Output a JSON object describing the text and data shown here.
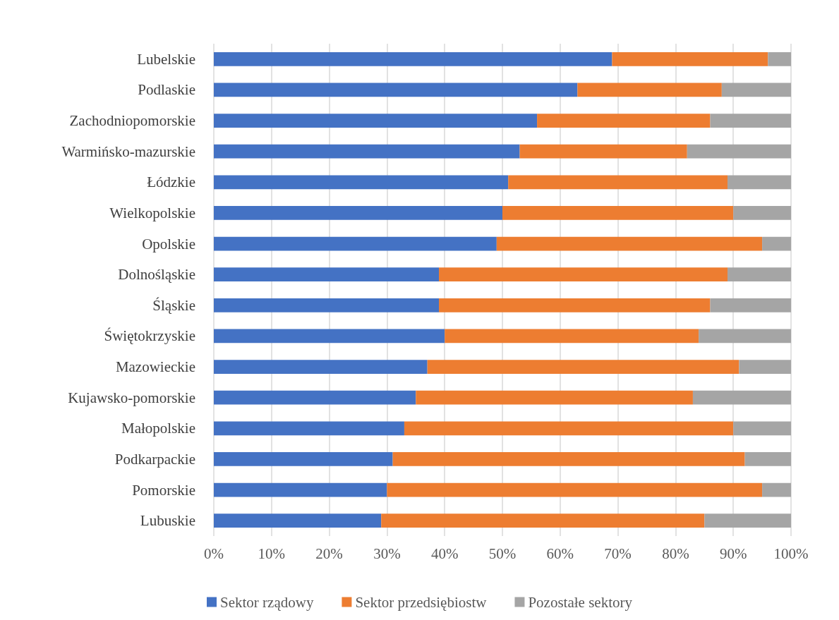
{
  "chart_data": {
    "type": "bar",
    "orientation": "horizontal",
    "stacked": true,
    "categories": [
      "Lubelskie",
      "Podlaskie",
      "Zachodniopomorskie",
      "Warmińsko-mazurskie",
      "Łódzkie",
      "Wielkopolskie",
      "Opolskie",
      "Dolnośląskie",
      "Śląskie",
      "Świętokrzyskie",
      "Mazowieckie",
      "Kujawsko-pomorskie",
      "Małopolskie",
      "Podkarpackie",
      "Pomorskie",
      "Lubuskie"
    ],
    "series": [
      {
        "name": "Sektor rządowy",
        "color": "#4472c4",
        "values": [
          69,
          63,
          56,
          53,
          51,
          50,
          49,
          39,
          39,
          40,
          37,
          35,
          33,
          31,
          30,
          29
        ]
      },
      {
        "name": "Sektor przedsiębiostw",
        "color": "#ed7d31",
        "values": [
          27,
          25,
          30,
          29,
          38,
          40,
          46,
          50,
          47,
          44,
          54,
          48,
          57,
          61,
          65,
          56
        ]
      },
      {
        "name": "Pozostałe sektory",
        "color": "#a5a5a5",
        "values": [
          4,
          12,
          14,
          18,
          11,
          10,
          5,
          11,
          14,
          16,
          9,
          17,
          10,
          8,
          5,
          15
        ]
      }
    ],
    "xlim": [
      0,
      100
    ],
    "xticks": [
      {
        "value": 0,
        "label": "0%"
      },
      {
        "value": 10,
        "label": "10%"
      },
      {
        "value": 20,
        "label": "20%"
      },
      {
        "value": 30,
        "label": "30%"
      },
      {
        "value": 40,
        "label": "40%"
      },
      {
        "value": 50,
        "label": "50%"
      },
      {
        "value": 60,
        "label": "60%"
      },
      {
        "value": 70,
        "label": "70%"
      },
      {
        "value": 80,
        "label": "80%"
      },
      {
        "value": 90,
        "label": "90%"
      },
      {
        "value": 100,
        "label": "100%"
      }
    ],
    "grid": "x",
    "legend": "bottom"
  }
}
